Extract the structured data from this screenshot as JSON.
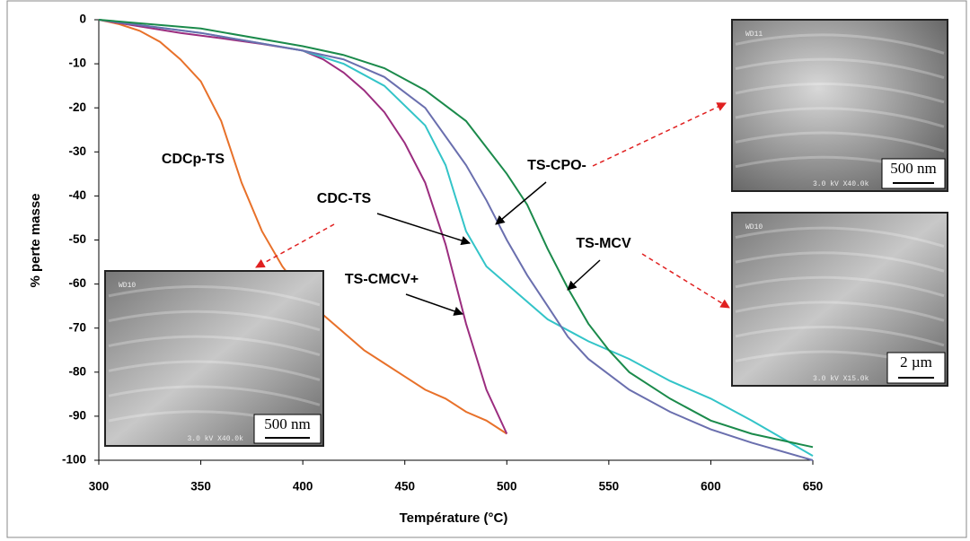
{
  "chart_data": {
    "type": "line",
    "x_label": "Température (°C)",
    "y_label": "% perte masse",
    "xlim": [
      300,
      650
    ],
    "xticks": [
      300,
      350,
      400,
      450,
      500,
      550,
      600,
      650
    ],
    "ylim": [
      -100,
      0
    ],
    "yticks": [
      0,
      -10,
      -20,
      -30,
      -40,
      -50,
      -60,
      -70,
      -80,
      -90,
      -100
    ],
    "series": [
      {
        "name": "CDCp-TS",
        "color": "#e8712a",
        "x": [
          300,
          310,
          320,
          330,
          340,
          350,
          360,
          370,
          380,
          390,
          400,
          410,
          420,
          430,
          440,
          450,
          460,
          470,
          480,
          490,
          500
        ],
        "values": [
          0,
          -1,
          -2.5,
          -5,
          -9,
          -14,
          -23,
          -37,
          -48,
          -56,
          -62,
          -67,
          -71,
          -75,
          -78,
          -81,
          -84,
          -86,
          -89,
          -91,
          -94
        ]
      },
      {
        "name": "CDC-TS",
        "color": "#9b2d7f",
        "x": [
          300,
          320,
          340,
          360,
          380,
          400,
          410,
          420,
          430,
          440,
          450,
          460,
          470,
          480,
          490,
          500
        ],
        "values": [
          0,
          -1.5,
          -3,
          -4.2,
          -5.5,
          -7,
          -9,
          -12,
          -16,
          -21,
          -28,
          -37,
          -51,
          -69,
          -84,
          -94
        ]
      },
      {
        "name": "TS-CMCV+",
        "color": "#33c4c8",
        "x": [
          300,
          350,
          400,
          420,
          440,
          460,
          470,
          480,
          490,
          500,
          520,
          540,
          560,
          580,
          600,
          620,
          650
        ],
        "values": [
          0,
          -3,
          -7,
          -10,
          -15,
          -24,
          -33,
          -48,
          -56,
          -60,
          -68,
          -73,
          -77,
          -82,
          -86,
          -91,
          -99
        ]
      },
      {
        "name": "TS-CPO-",
        "color": "#6a6fae",
        "x": [
          300,
          350,
          400,
          420,
          440,
          460,
          480,
          490,
          500,
          510,
          520,
          530,
          540,
          560,
          580,
          600,
          620,
          650
        ],
        "values": [
          0,
          -3,
          -7,
          -9,
          -13,
          -20,
          -33,
          -41,
          -50,
          -58,
          -65,
          -72,
          -77,
          -84,
          -89,
          -93,
          -96,
          -100
        ]
      },
      {
        "name": "TS-MCV",
        "color": "#1b8a4b",
        "x": [
          300,
          350,
          400,
          420,
          440,
          460,
          480,
          500,
          510,
          520,
          530,
          540,
          550,
          560,
          580,
          600,
          620,
          640,
          650
        ],
        "values": [
          0,
          -2,
          -6,
          -8,
          -11,
          -16,
          -23,
          -35,
          -42,
          -52,
          -61,
          -69,
          -75,
          -80,
          -86,
          -91,
          -94,
          -96,
          -97
        ]
      }
    ],
    "insets": [
      {
        "top_text": "WD11",
        "bottom_text": "3.0 kV X40.0k",
        "scale": "500 nm"
      },
      {
        "top_text": "WD10",
        "bottom_text": "3.0 kV X15.0k",
        "scale": "2 µm"
      },
      {
        "top_text": "WD10",
        "bottom_text": "3.0 kV X40.0k",
        "scale": "500 nm"
      }
    ]
  }
}
